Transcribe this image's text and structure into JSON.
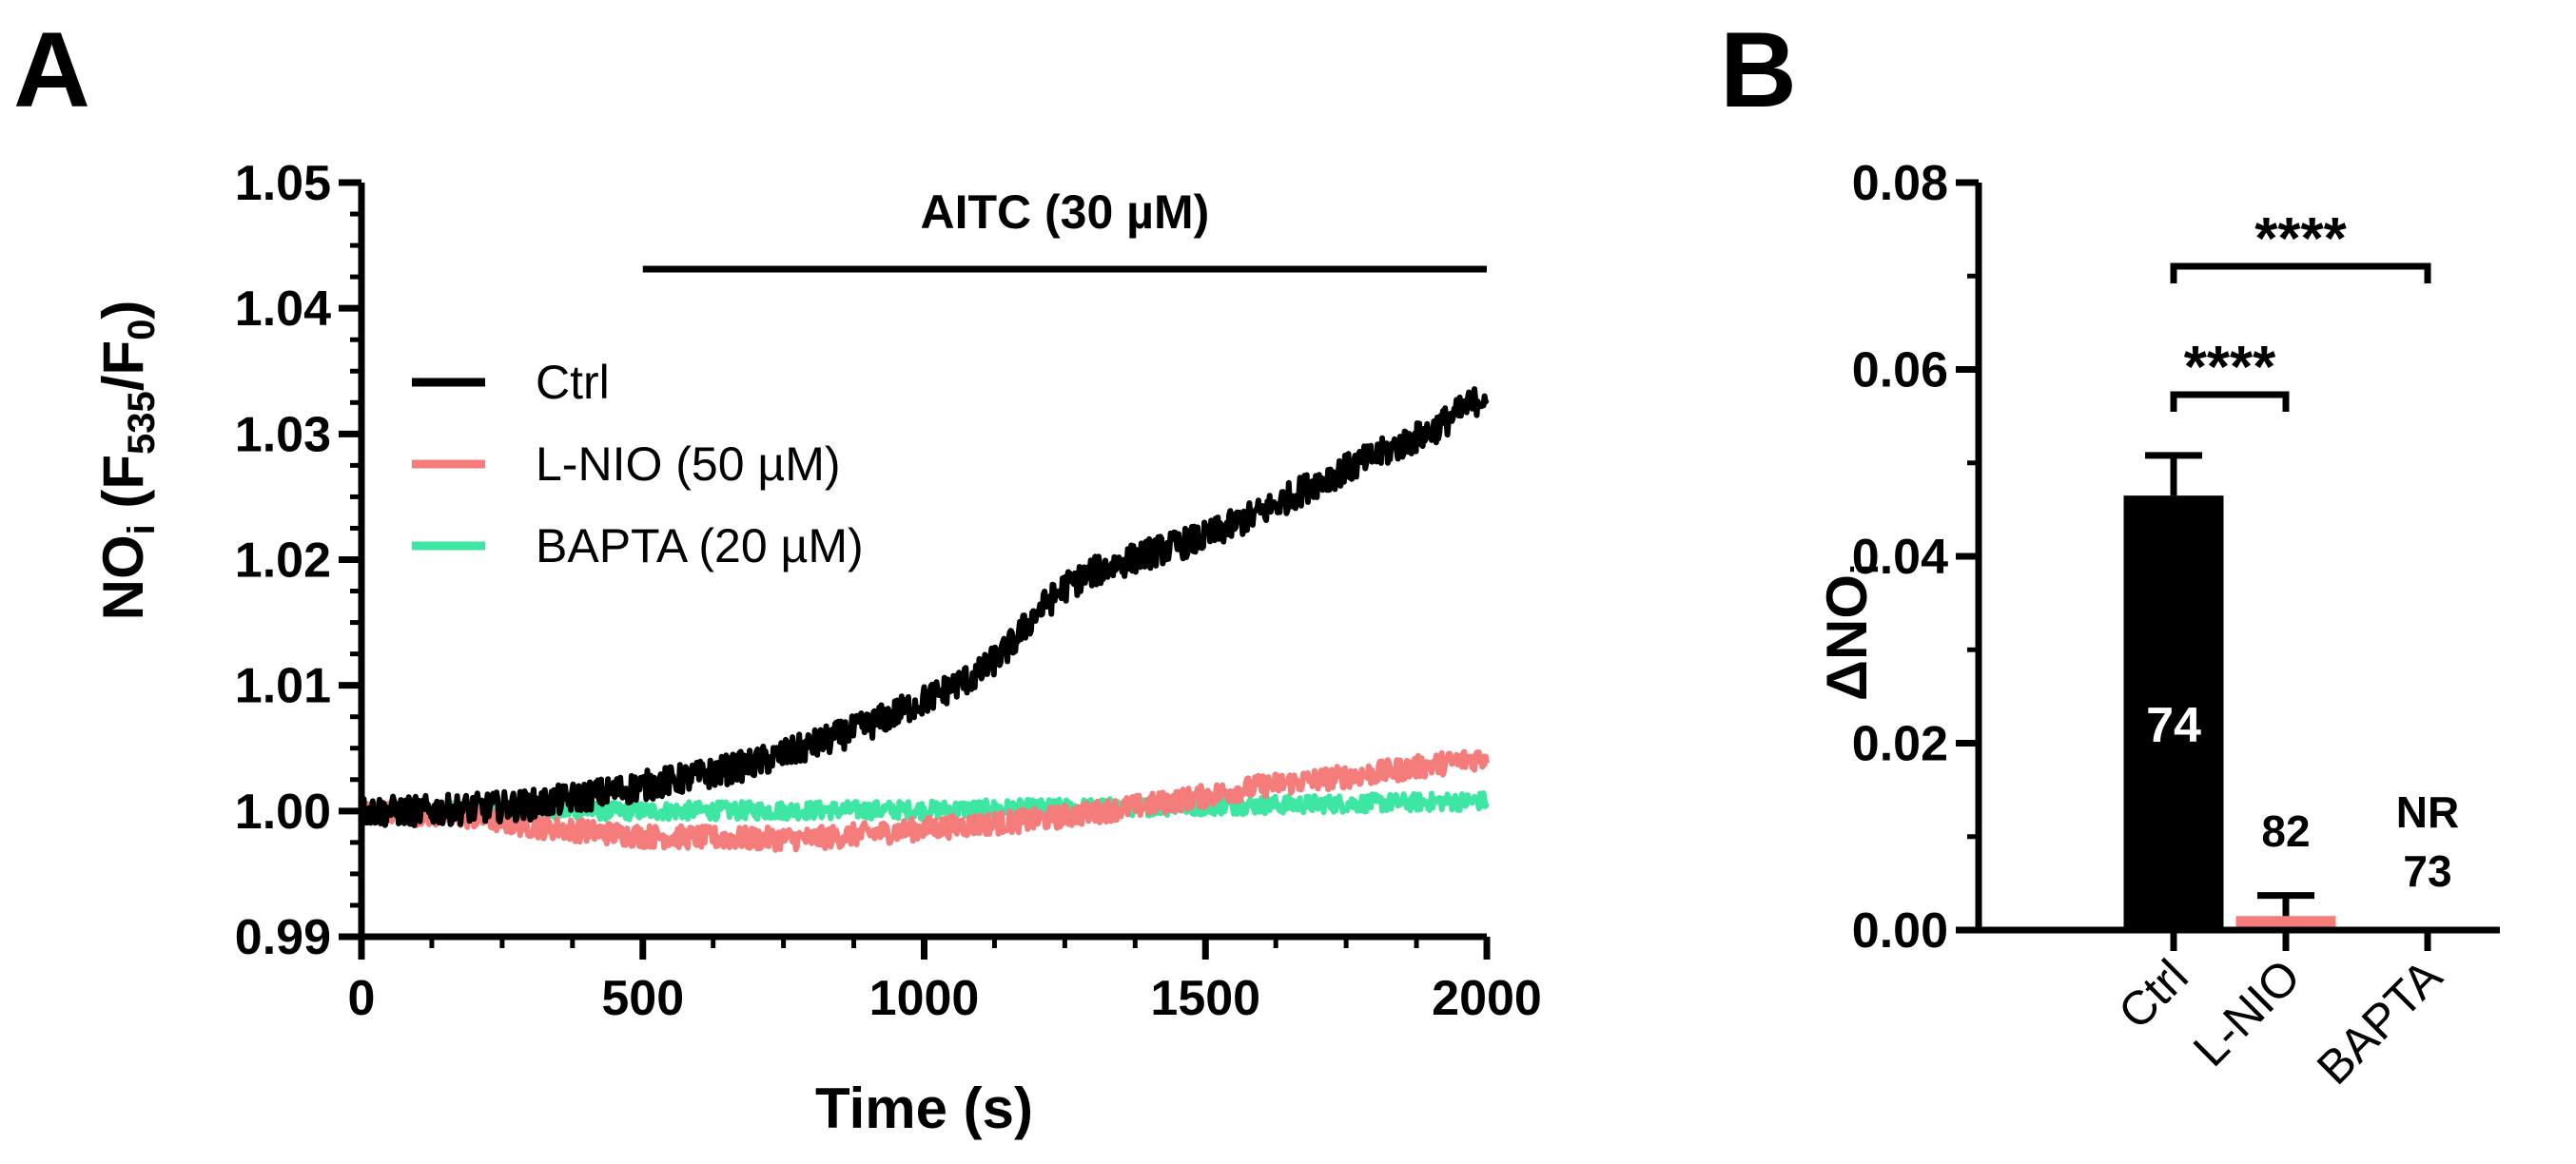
{
  "panels": {
    "a_label": "A",
    "b_label": "B"
  },
  "chart_data": [
    {
      "type": "line",
      "panel": "A",
      "xlabel": "Time (s)",
      "ylabel": {
        "base": "NO",
        "base_sub": "i",
        "open": " (F",
        "sub1": "535",
        "mid": "/F",
        "sub2": "0",
        "close": ")"
      },
      "xlim": [
        0,
        2000
      ],
      "ylim": [
        0.99,
        1.05
      ],
      "x_ticks": [
        0,
        500,
        1000,
        1500,
        2000
      ],
      "x_tick_labels": [
        "0",
        "500",
        "1000",
        "1500",
        "2000"
      ],
      "x_minor_step": 125,
      "y_ticks": [
        0.99,
        1.0,
        1.01,
        1.02,
        1.03,
        1.04,
        1.05
      ],
      "y_tick_labels": [
        "0.99",
        "1.00",
        "1.01",
        "1.02",
        "1.03",
        "1.04",
        "1.05"
      ],
      "y_minor_step": 0.0025,
      "annotation": {
        "text": "AITC (30 µM)",
        "x_start": 500,
        "x_end": 2000
      },
      "legend_position": "upper-left",
      "series": [
        {
          "name": "Ctrl",
          "color": "#000000",
          "noise": 0.0012,
          "x": [
            0,
            100,
            200,
            300,
            400,
            500,
            600,
            700,
            800,
            900,
            1000,
            1100,
            1150,
            1200,
            1250,
            1300,
            1400,
            1500,
            1600,
            1700,
            1800,
            1900,
            2000
          ],
          "y": [
            1.0,
            1.0,
            1.0002,
            1.0005,
            1.0012,
            1.002,
            1.0028,
            1.0038,
            1.0052,
            1.0068,
            1.0088,
            1.011,
            1.013,
            1.0158,
            1.0178,
            1.019,
            1.0205,
            1.0218,
            1.0238,
            1.0262,
            1.0282,
            1.0302,
            1.0332
          ]
        },
        {
          "name": "L-NIO (50 µM)",
          "color": "#f47c7a",
          "noise": 0.0009,
          "x": [
            0,
            200,
            300,
            400,
            500,
            600,
            700,
            800,
            900,
            1000,
            1200,
            1400,
            1500,
            1600,
            1800,
            2000
          ],
          "y": [
            1.0,
            0.9995,
            0.9988,
            0.9984,
            0.998,
            0.9979,
            0.9978,
            0.9978,
            0.9982,
            0.9986,
            0.9993,
            1.0005,
            1.0012,
            1.002,
            1.003,
            1.0043
          ]
        },
        {
          "name": "BAPTA (20 µM)",
          "color": "#3ee6a3",
          "noise": 0.0007,
          "x": [
            0,
            500,
            1000,
            1500,
            2000
          ],
          "y": [
            1.0,
            1.0,
            1.0001,
            1.0004,
            1.0008
          ]
        }
      ]
    },
    {
      "type": "bar",
      "panel": "B",
      "ylabel": {
        "prefix": "ΔNO",
        "sub": "i"
      },
      "ylim": [
        0,
        0.08
      ],
      "y_ticks": [
        0.0,
        0.02,
        0.04,
        0.06,
        0.08
      ],
      "y_tick_labels": [
        "0.00",
        "0.02",
        "0.04",
        "0.06",
        "0.08"
      ],
      "y_minor_step": 0.01,
      "categories": [
        "Ctrl",
        "L-NIO",
        "BAPTA"
      ],
      "values": [
        0.0465,
        0.0015,
        0.0
      ],
      "errors": [
        0.0043,
        0.0022,
        0.0
      ],
      "colors": [
        "#000000",
        "#f47c7a",
        "#3ee6a3"
      ],
      "n_labels": [
        "74",
        "82",
        "73"
      ],
      "extra_labels": [
        "",
        "",
        "NR"
      ],
      "significance": [
        {
          "from": 0,
          "to": 1,
          "label": "****"
        },
        {
          "from": 0,
          "to": 2,
          "label": "****"
        }
      ]
    }
  ]
}
